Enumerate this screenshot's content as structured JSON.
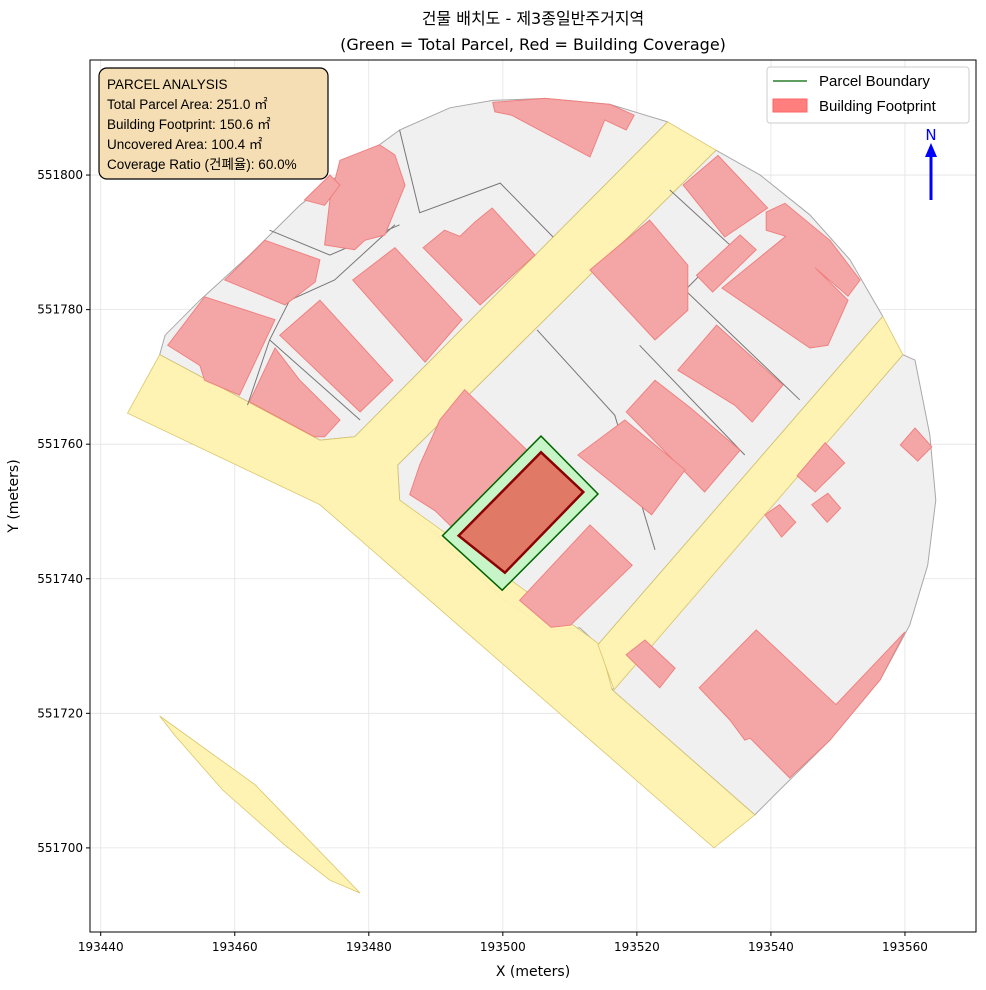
{
  "chart_data": {
    "type": "map",
    "title": "건물 배치도 - 제3종일반주거지역",
    "subtitle": "(Green = Total Parcel, Red = Building Coverage)",
    "xlabel": "X (meters)",
    "ylabel": "Y (meters)",
    "xlim": [
      193438.4,
      193570.6
    ],
    "ylim": [
      551687.5,
      551817.1
    ],
    "xticks": [
      193440,
      193460,
      193480,
      193500,
      193520,
      193540,
      193560
    ],
    "yticks": [
      551700,
      551720,
      551740,
      551760,
      551780,
      551800
    ],
    "grid": true,
    "legend": {
      "placement": "top-right",
      "items": [
        {
          "label": "Parcel Boundary",
          "color": "#006400"
        },
        {
          "label": "Building Footprint",
          "color": "#ff7f7f"
        }
      ]
    },
    "info_box": {
      "placement": "top-left",
      "lines": [
        "PARCEL ANALYSIS",
        "Total Parcel Area: 251.0 ㎡",
        "Building Footprint: 150.6 ㎡",
        "Uncovered Area: 100.4 ㎡",
        "Coverage Ratio (건폐율): 60.0%"
      ]
    },
    "north_arrow": {
      "label": "N",
      "color": "#0000ff"
    },
    "colors": {
      "road": "#fff2b0",
      "block": "#f0f0f0",
      "building": "#f4a6a6",
      "parcel_fill": "#c8f5c8",
      "parcel_edge": "#006400",
      "target_building": "#e07a66",
      "target_edge": "#8b0000"
    },
    "roads": [
      [
        [
          193448.8,
          551773.3
        ],
        [
          193472.7,
          551760.6
        ],
        [
          193477.9,
          551761.1
        ],
        [
          193524.6,
          551807.9
        ],
        [
          193531.8,
          551803.7
        ],
        [
          193484.3,
          551756.9
        ],
        [
          193484.6,
          551751.7
        ],
        [
          193511.5,
          551732.4
        ],
        [
          193514.5,
          551730.2
        ],
        [
          193516.3,
          551723.5
        ],
        [
          193537.6,
          551704.9
        ],
        [
          193531.5,
          551700.0
        ],
        [
          193472.7,
          551751.0
        ],
        [
          193444.0,
          551764.6
        ]
      ],
      [
        [
          193556.7,
          551779.0
        ],
        [
          193559.7,
          551773.3
        ],
        [
          193516.6,
          551723.5
        ],
        [
          193514.2,
          551730.2
        ]
      ],
      [
        [
          193448.8,
          551719.6
        ],
        [
          193451.0,
          551716.8
        ],
        [
          193458.2,
          551708.6
        ],
        [
          193467.5,
          551700.4
        ],
        [
          193474.2,
          551695.2
        ],
        [
          193478.7,
          551693.3
        ],
        [
          193463.0,
          551709.4
        ]
      ]
    ],
    "blocks": [
      [
        [
          193448.8,
          551773.3
        ],
        [
          193449.6,
          551776.2
        ],
        [
          193454.8,
          551781.4
        ],
        [
          193462.2,
          551788.1
        ],
        [
          193469.7,
          551795.5
        ],
        [
          193476.4,
          551800.7
        ],
        [
          193484.6,
          551806.7
        ],
        [
          193492.1,
          551810.0
        ],
        [
          193498.5,
          551811.1
        ],
        [
          193506.3,
          551811.4
        ],
        [
          193516.0,
          551810.5
        ],
        [
          193524.6,
          551807.9
        ],
        [
          193477.9,
          551761.1
        ],
        [
          193472.7,
          551760.6
        ]
      ],
      [
        [
          193484.3,
          551756.9
        ],
        [
          193531.8,
          551803.7
        ],
        [
          193538.4,
          551800.0
        ],
        [
          193545.8,
          551794.1
        ],
        [
          193551.8,
          551787.4
        ],
        [
          193556.7,
          551779.0
        ],
        [
          193514.2,
          551730.2
        ],
        [
          193511.5,
          551732.7
        ],
        [
          193507.0,
          551732.4
        ],
        [
          193500.3,
          551736.8
        ],
        [
          193484.6,
          551751.7
        ]
      ],
      [
        [
          193559.7,
          551773.3
        ],
        [
          193561.5,
          551772.5
        ],
        [
          193563.7,
          551761.4
        ],
        [
          193564.6,
          551751.7
        ],
        [
          193563.4,
          551742.0
        ],
        [
          193560.7,
          551733.1
        ],
        [
          193556.3,
          551725.0
        ],
        [
          193548.8,
          551716.0
        ],
        [
          193541.3,
          551708.6
        ],
        [
          193537.6,
          551704.9
        ],
        [
          193516.3,
          551723.5
        ]
      ]
    ],
    "parcel_lines": [
      [
        [
          193484.6,
          551806.7
        ],
        [
          193487.6,
          551794.4
        ],
        [
          193499.6,
          551798.8
        ],
        [
          193507.5,
          551790.8
        ]
      ],
      [
        [
          193465.2,
          551791.8
        ],
        [
          193474.2,
          551788.1
        ],
        [
          193484.6,
          551792.6
        ]
      ],
      [
        [
          193461.5,
          551783.7
        ],
        [
          193468.2,
          551781.4
        ],
        [
          193474.9,
          551784.4
        ],
        [
          193483.9,
          551792.6
        ]
      ],
      [
        [
          193461.9,
          551765.8
        ],
        [
          193465.2,
          551775.5
        ],
        [
          193468.2,
          551781.4
        ]
      ],
      [
        [
          193465.2,
          551775.5
        ],
        [
          193478.7,
          551763.6
        ]
      ],
      [
        [
          193505.1,
          551777.0
        ],
        [
          193516.7,
          551764.3
        ],
        [
          193522.7,
          551744.3
        ]
      ],
      [
        [
          193524.9,
          551797.8
        ],
        [
          193533.9,
          551789.6
        ],
        [
          193527.2,
          551782.9
        ],
        [
          193544.3,
          551766.6
        ]
      ],
      [
        [
          193520.4,
          551774.7
        ],
        [
          193536.1,
          551758.4
        ]
      ]
    ],
    "buildings": [
      [
        [
          193498.5,
          551810.8
        ],
        [
          193506.3,
          551811.4
        ],
        [
          193516.0,
          551810.5
        ],
        [
          193519.6,
          551808.9
        ],
        [
          193518.4,
          551806.7
        ],
        [
          193515.2,
          551808.2
        ],
        [
          193513.0,
          551802.7
        ],
        [
          193501.3,
          551808.9
        ],
        [
          193498.8,
          551809.4
        ]
      ],
      [
        [
          193475.7,
          551802.2
        ],
        [
          193481.6,
          551804.5
        ],
        [
          193483.9,
          551803.0
        ],
        [
          193485.4,
          551798.5
        ],
        [
          193482.4,
          551791.1
        ],
        [
          193479.4,
          551790.3
        ],
        [
          193477.9,
          551788.9
        ],
        [
          193473.4,
          551789.6
        ],
        [
          193474.2,
          551796.3
        ]
      ],
      [
        [
          193470.4,
          551796.3
        ],
        [
          193474.2,
          551800.0
        ],
        [
          193475.7,
          551798.5
        ],
        [
          193473.4,
          551795.5
        ]
      ],
      [
        [
          193458.5,
          551784.4
        ],
        [
          193464.5,
          551790.3
        ],
        [
          193472.7,
          551787.4
        ],
        [
          193472.0,
          551784.1
        ],
        [
          193467.5,
          551780.7
        ]
      ],
      [
        [
          193450.0,
          551774.7
        ],
        [
          193455.5,
          551781.9
        ],
        [
          193466.0,
          551778.5
        ],
        [
          193460.7,
          551767.3
        ],
        [
          193455.5,
          551769.5
        ],
        [
          193454.8,
          551771.7
        ]
      ],
      [
        [
          193462.2,
          551766.3
        ],
        [
          193466.0,
          551774.3
        ],
        [
          193469.7,
          551769.5
        ],
        [
          193475.7,
          551763.6
        ],
        [
          193473.4,
          551761.1
        ],
        [
          193471.9,
          551761.1
        ]
      ],
      [
        [
          193466.7,
          551776.2
        ],
        [
          193472.7,
          551781.4
        ],
        [
          193483.6,
          551769.5
        ],
        [
          193478.7,
          551764.8
        ]
      ],
      [
        [
          193477.6,
          551784.4
        ],
        [
          193483.9,
          551789.2
        ],
        [
          193493.9,
          551778.5
        ],
        [
          193488.4,
          551772.2
        ]
      ],
      [
        [
          193488.1,
          551789.2
        ],
        [
          193491.3,
          551791.8
        ],
        [
          193493.6,
          551790.9
        ],
        [
          193495.8,
          551793.0
        ],
        [
          193498.4,
          551795.1
        ],
        [
          193504.8,
          551788.1
        ],
        [
          193496.6,
          551780.7
        ]
      ],
      [
        [
          193513.0,
          551785.9
        ],
        [
          193521.9,
          551793.3
        ],
        [
          193527.6,
          551786.6
        ],
        [
          193527.6,
          551779.9
        ],
        [
          193522.7,
          551775.5
        ]
      ],
      [
        [
          193526.9,
          551798.5
        ],
        [
          193532.1,
          551802.9
        ],
        [
          193539.5,
          551795.1
        ],
        [
          193533.1,
          551790.8
        ]
      ],
      [
        [
          193528.9,
          551785.1
        ],
        [
          193535.4,
          551791.1
        ],
        [
          193537.8,
          551788.9
        ],
        [
          193531.3,
          551782.6
        ]
      ],
      [
        [
          193539.3,
          551794.5
        ],
        [
          193542.1,
          551795.8
        ],
        [
          193548.8,
          551790.3
        ],
        [
          193553.3,
          551784.4
        ],
        [
          193551.5,
          551782.0
        ],
        [
          193546.6,
          551786.2
        ],
        [
          193551.5,
          551781.4
        ],
        [
          193548.5,
          551774.7
        ],
        [
          193545.8,
          551774.3
        ],
        [
          193532.7,
          551783.2
        ],
        [
          193542.2,
          551790.9
        ],
        [
          193539.3,
          551791.8
        ]
      ],
      [
        [
          193526.1,
          551771.0
        ],
        [
          193531.9,
          551777.7
        ],
        [
          193541.8,
          551768.8
        ],
        [
          193537.2,
          551763.3
        ],
        [
          193534.6,
          551765.8
        ]
      ],
      [
        [
          193518.4,
          551764.8
        ],
        [
          193522.7,
          551769.5
        ],
        [
          193528.0,
          551765.4
        ],
        [
          193535.4,
          551759.1
        ],
        [
          193530.1,
          551752.9
        ]
      ],
      [
        [
          193511.2,
          551758.4
        ],
        [
          193518.2,
          551763.6
        ],
        [
          193527.2,
          551756.2
        ],
        [
          193522.2,
          551749.5
        ]
      ],
      [
        [
          193486.1,
          551752.5
        ],
        [
          193487.6,
          551756.9
        ],
        [
          193490.6,
          551763.6
        ],
        [
          193494.3,
          551768.1
        ],
        [
          193503.6,
          551759.1
        ],
        [
          193493.6,
          551746.5
        ],
        [
          193489.9,
          551750.1
        ]
      ],
      [
        [
          193502.5,
          551736.8
        ],
        [
          193513.0,
          551748.0
        ],
        [
          193519.3,
          551742.0
        ],
        [
          193510.1,
          551733.1
        ],
        [
          193507.2,
          551732.8
        ]
      ],
      [
        [
          193518.4,
          551728.7
        ],
        [
          193521.2,
          551730.9
        ],
        [
          193525.7,
          551726.7
        ],
        [
          193523.4,
          551723.8
        ]
      ],
      [
        [
          193529.3,
          551723.8
        ],
        [
          193537.8,
          551732.4
        ],
        [
          193549.7,
          551721.3
        ],
        [
          193560.0,
          551732.1
        ],
        [
          193556.3,
          551725.0
        ],
        [
          193548.8,
          551716.0
        ],
        [
          193542.8,
          551710.4
        ],
        [
          193536.9,
          551716.3
        ],
        [
          193536.1,
          551716.0
        ],
        [
          193533.9,
          551719.0
        ]
      ],
      [
        [
          193543.9,
          551755.3
        ],
        [
          193548.1,
          551760.2
        ],
        [
          193551.0,
          551757.2
        ],
        [
          193546.6,
          551752.9
        ]
      ],
      [
        [
          193546.1,
          551751.0
        ],
        [
          193548.5,
          551752.7
        ],
        [
          193550.4,
          551750.5
        ],
        [
          193548.4,
          551748.4
        ]
      ],
      [
        [
          193539.1,
          551749.5
        ],
        [
          193541.3,
          551751.0
        ],
        [
          193543.7,
          551748.4
        ],
        [
          193541.6,
          551746.2
        ]
      ],
      [
        [
          193559.3,
          551759.9
        ],
        [
          193561.5,
          551762.4
        ],
        [
          193564.0,
          551759.6
        ],
        [
          193561.9,
          551757.5
        ]
      ]
    ],
    "target_parcel": [
      [
        193491.0,
        551746.4
      ],
      [
        193505.7,
        551761.2
      ],
      [
        193514.2,
        551752.6
      ],
      [
        193499.9,
        551738.3
      ]
    ],
    "target_building": [
      [
        193493.4,
        551746.4
      ],
      [
        193505.7,
        551758.8
      ],
      [
        193512.0,
        551752.9
      ],
      [
        193500.3,
        551740.9
      ]
    ]
  }
}
